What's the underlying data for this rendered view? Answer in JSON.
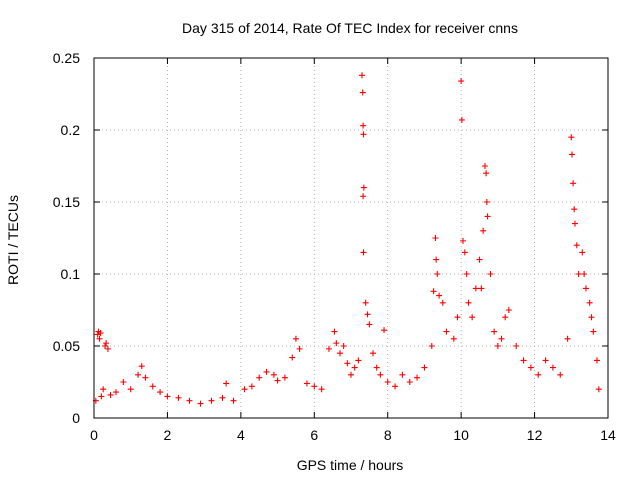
{
  "chart_data": {
    "type": "scatter",
    "title": "Day 315 of 2014, Rate Of TEC Index for receiver cnns",
    "xlabel": "GPS time / hours",
    "ylabel": "ROTI / TECUs",
    "xlim": [
      0,
      14
    ],
    "ylim": [
      0,
      0.25
    ],
    "xticks": [
      0,
      2,
      4,
      6,
      8,
      10,
      12,
      14
    ],
    "yticks": [
      0,
      0.05,
      0.1,
      0.15,
      0.2,
      0.25
    ],
    "xtick_labels": [
      "0",
      "2",
      "4",
      "6",
      "8",
      "10",
      "12",
      "14"
    ],
    "ytick_labels": [
      "0",
      "0.05",
      "0.1",
      "0.15",
      "0.2",
      "0.25"
    ],
    "grid": true,
    "marker": "plus",
    "color": "#ff0000",
    "series": [
      {
        "name": "ROTI",
        "points": [
          [
            0.05,
            0.012
          ],
          [
            0.1,
            0.058
          ],
          [
            0.12,
            0.06
          ],
          [
            0.15,
            0.055
          ],
          [
            0.18,
            0.059
          ],
          [
            0.2,
            0.015
          ],
          [
            0.25,
            0.02
          ],
          [
            0.3,
            0.05
          ],
          [
            0.33,
            0.052
          ],
          [
            0.38,
            0.048
          ],
          [
            0.45,
            0.016
          ],
          [
            0.6,
            0.018
          ],
          [
            0.8,
            0.025
          ],
          [
            1.0,
            0.02
          ],
          [
            1.2,
            0.03
          ],
          [
            1.3,
            0.036
          ],
          [
            1.4,
            0.028
          ],
          [
            1.6,
            0.022
          ],
          [
            1.8,
            0.018
          ],
          [
            2.0,
            0.015
          ],
          [
            2.3,
            0.014
          ],
          [
            2.6,
            0.012
          ],
          [
            2.9,
            0.01
          ],
          [
            3.2,
            0.012
          ],
          [
            3.5,
            0.014
          ],
          [
            3.6,
            0.024
          ],
          [
            3.8,
            0.012
          ],
          [
            4.1,
            0.02
          ],
          [
            4.3,
            0.022
          ],
          [
            4.5,
            0.028
          ],
          [
            4.7,
            0.032
          ],
          [
            4.9,
            0.03
          ],
          [
            5.0,
            0.026
          ],
          [
            5.2,
            0.028
          ],
          [
            5.4,
            0.042
          ],
          [
            5.5,
            0.055
          ],
          [
            5.6,
            0.048
          ],
          [
            5.8,
            0.024
          ],
          [
            6.0,
            0.022
          ],
          [
            6.2,
            0.02
          ],
          [
            6.4,
            0.048
          ],
          [
            6.55,
            0.06
          ],
          [
            6.6,
            0.052
          ],
          [
            6.7,
            0.045
          ],
          [
            6.8,
            0.05
          ],
          [
            6.9,
            0.038
          ],
          [
            7.0,
            0.03
          ],
          [
            7.1,
            0.035
          ],
          [
            7.2,
            0.04
          ],
          [
            7.3,
            0.238
          ],
          [
            7.32,
            0.226
          ],
          [
            7.33,
            0.203
          ],
          [
            7.34,
            0.197
          ],
          [
            7.35,
            0.16
          ],
          [
            7.33,
            0.154
          ],
          [
            7.34,
            0.115
          ],
          [
            7.4,
            0.08
          ],
          [
            7.45,
            0.072
          ],
          [
            7.5,
            0.065
          ],
          [
            7.6,
            0.045
          ],
          [
            7.7,
            0.035
          ],
          [
            7.8,
            0.03
          ],
          [
            7.9,
            0.061
          ],
          [
            8.0,
            0.025
          ],
          [
            8.2,
            0.022
          ],
          [
            8.4,
            0.03
          ],
          [
            8.6,
            0.025
          ],
          [
            8.8,
            0.028
          ],
          [
            9.0,
            0.035
          ],
          [
            9.2,
            0.05
          ],
          [
            9.25,
            0.088
          ],
          [
            9.3,
            0.125
          ],
          [
            9.32,
            0.11
          ],
          [
            9.35,
            0.1
          ],
          [
            9.4,
            0.085
          ],
          [
            9.5,
            0.08
          ],
          [
            9.6,
            0.06
          ],
          [
            9.8,
            0.055
          ],
          [
            9.9,
            0.07
          ],
          [
            10.0,
            0.234
          ],
          [
            10.02,
            0.207
          ],
          [
            10.05,
            0.123
          ],
          [
            10.1,
            0.115
          ],
          [
            10.15,
            0.1
          ],
          [
            10.2,
            0.08
          ],
          [
            10.3,
            0.07
          ],
          [
            10.4,
            0.09
          ],
          [
            10.5,
            0.11
          ],
          [
            10.55,
            0.09
          ],
          [
            10.6,
            0.13
          ],
          [
            10.65,
            0.175
          ],
          [
            10.68,
            0.17
          ],
          [
            10.7,
            0.15
          ],
          [
            10.72,
            0.14
          ],
          [
            10.8,
            0.1
          ],
          [
            10.9,
            0.06
          ],
          [
            11.0,
            0.05
          ],
          [
            11.1,
            0.055
          ],
          [
            11.2,
            0.07
          ],
          [
            11.3,
            0.075
          ],
          [
            11.5,
            0.05
          ],
          [
            11.7,
            0.04
          ],
          [
            11.9,
            0.035
          ],
          [
            12.1,
            0.03
          ],
          [
            12.3,
            0.04
          ],
          [
            12.5,
            0.035
          ],
          [
            12.7,
            0.03
          ],
          [
            12.9,
            0.055
          ],
          [
            13.0,
            0.195
          ],
          [
            13.02,
            0.183
          ],
          [
            13.05,
            0.163
          ],
          [
            13.08,
            0.145
          ],
          [
            13.1,
            0.135
          ],
          [
            13.15,
            0.12
          ],
          [
            13.2,
            0.1
          ],
          [
            13.3,
            0.115
          ],
          [
            13.35,
            0.1
          ],
          [
            13.4,
            0.09
          ],
          [
            13.5,
            0.08
          ],
          [
            13.55,
            0.07
          ],
          [
            13.6,
            0.06
          ],
          [
            13.7,
            0.04
          ],
          [
            13.75,
            0.02
          ]
        ]
      }
    ]
  }
}
